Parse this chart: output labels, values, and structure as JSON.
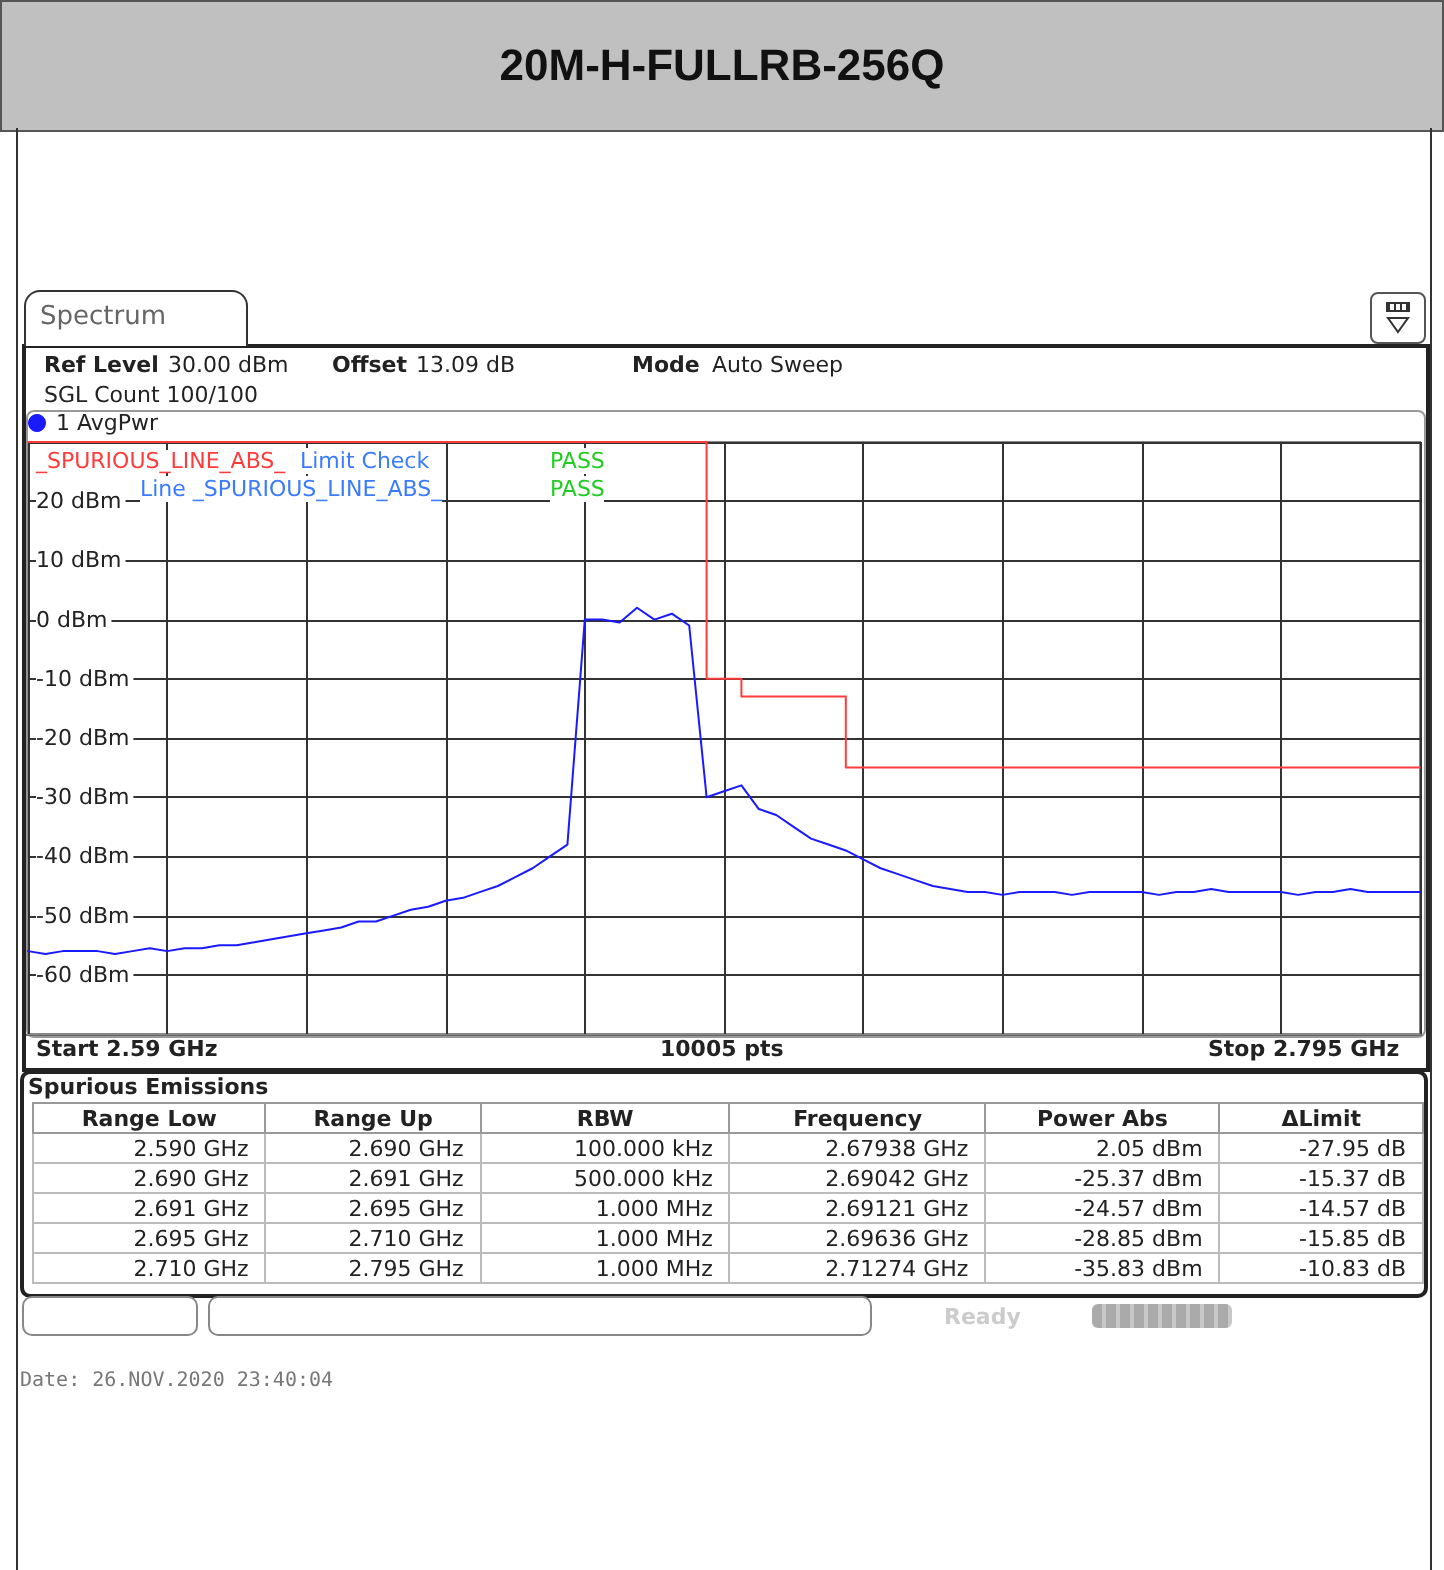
{
  "chart_data": {
    "type": "line",
    "title": "20M-H-FULLRB-256Q",
    "categories": [
      null,
      null,
      null,
      null,
      null,
      null,
      null,
      null,
      null,
      null,
      null,
      null,
      null,
      null,
      null,
      null,
      null,
      null,
      null,
      null,
      null,
      null,
      null,
      null,
      null,
      null,
      null,
      null,
      null,
      null,
      null,
      null,
      null,
      null,
      null,
      null,
      null,
      null,
      null,
      null,
      null,
      null,
      null,
      null,
      null,
      null,
      null,
      null,
      null,
      null,
      null,
      null,
      null,
      null,
      null,
      null,
      null,
      null,
      null,
      null,
      null,
      null,
      null,
      null,
      null,
      null,
      null,
      null,
      null,
      null,
      null,
      null,
      null,
      null,
      null,
      null,
      null,
      null,
      null,
      null,
      null
    ],
    "ylim": [
      -70,
      30
    ],
    "yticks": [
      {
        "value": 30,
        "label": null
      },
      {
        "value": 20,
        "label": "20 dBm"
      },
      {
        "value": 10,
        "label": "10 dBm"
      },
      {
        "value": 0,
        "label": "0 dBm"
      },
      {
        "value": -10,
        "label": "-10 dBm"
      },
      {
        "value": -20,
        "label": "-20 dBm"
      },
      {
        "value": -30,
        "label": "-30 dBm"
      },
      {
        "value": -40,
        "label": "-40 dBm"
      },
      {
        "value": -50,
        "label": "-50 dBm"
      },
      {
        "value": -60,
        "label": "-60 dBm"
      }
    ],
    "tick_labels": "y",
    "grid": true,
    "legend": "top left",
    "marker": "none",
    "line_style": "solid",
    "series": [
      {
        "name": "1 AvgPwr",
        "color": "#1a1aff",
        "values": [
          -56,
          -56.5,
          -56,
          -56,
          -56,
          -56.5,
          -56,
          -55.5,
          -56,
          -55.5,
          -55.5,
          -55,
          -55,
          -54.5,
          -54,
          -53.5,
          -53,
          -52.5,
          -52,
          -51,
          -51,
          -50,
          -49,
          -48.5,
          -47.5,
          -47,
          -46,
          -45,
          -43.5,
          -42,
          -40,
          -38,
          0,
          0,
          -0.5,
          2,
          0,
          1,
          -1,
          -30,
          -29,
          -28,
          -32,
          -33,
          -35,
          -37,
          -38,
          -39,
          -40.5,
          -42,
          -43,
          -44,
          -45,
          -45.5,
          -46,
          -46,
          -46.5,
          -46,
          -46,
          -46,
          -46.5,
          -46,
          -46,
          -46,
          -46,
          -46.5,
          -46,
          -46,
          -45.5,
          -46,
          -46,
          -46,
          -46,
          -46.5,
          -46,
          -46,
          -45.5,
          -46,
          -46,
          -46,
          -46
        ]
      },
      {
        "name": "_SPURIOUS_LINE_ABS_",
        "type": "step",
        "color": "#ff3b3b",
        "values": [
          30,
          30,
          30,
          30,
          30,
          30,
          30,
          30,
          30,
          30,
          30,
          30,
          30,
          30,
          30,
          30,
          30,
          30,
          30,
          30,
          30,
          30,
          30,
          30,
          30,
          30,
          30,
          30,
          30,
          30,
          30,
          30,
          30,
          30,
          30,
          30,
          30,
          30,
          30,
          -10,
          -10,
          -13,
          -13,
          -13,
          -13,
          -13,
          -13,
          -25,
          -25,
          -25,
          -25,
          -25,
          -25,
          -25,
          -25,
          -25,
          -25,
          -25,
          -25,
          -25,
          -25,
          -25,
          -25,
          -25,
          -25,
          -25,
          -25,
          -25,
          -25,
          -25,
          -25,
          -25,
          -25,
          -25,
          -25,
          -25,
          -25,
          -25,
          -25,
          -25,
          -25
        ]
      }
    ],
    "annotations": [
      "Spectrum",
      "Ref Level",
      "30.00 dBm",
      "Offset",
      "13.09 dB",
      "Mode",
      "Auto Sweep",
      "SGL Count 100/100",
      "Limit Check",
      "PASS",
      "Line _SPURIOUS_LINE_ABS_",
      "PASS",
      "Start 2.59 GHz",
      "10005 pts",
      "Stop 2.795 GHz",
      "Spurious Emissions",
      "Range Low",
      "Range Up",
      "RBW",
      "Frequency",
      "Power Abs",
      "ΔLimit",
      "2.590 GHz",
      "2.690 GHz",
      "100.000 kHz",
      "2.67938 GHz",
      "2.05 dBm",
      "-27.95 dB",
      "2.690 GHz",
      "2.691 GHz",
      "500.000 kHz",
      "2.69042 GHz",
      "-25.37 dBm",
      "-15.37 dB",
      "2.691 GHz",
      "2.695 GHz",
      "1.000 MHz",
      "2.69121 GHz",
      "-24.57 dBm",
      "-14.57 dB",
      "2.695 GHz",
      "2.710 GHz",
      "1.000 MHz",
      "2.69636 GHz",
      "-28.85 dBm",
      "-15.85 dB",
      "2.710 GHz",
      "2.795 GHz",
      "1.000 MHz",
      "2.71274 GHz",
      "-35.83 dBm",
      "-10.83 dB",
      "Ready",
      "Date: 26.NOV.2020 23:40:04"
    ]
  }
}
